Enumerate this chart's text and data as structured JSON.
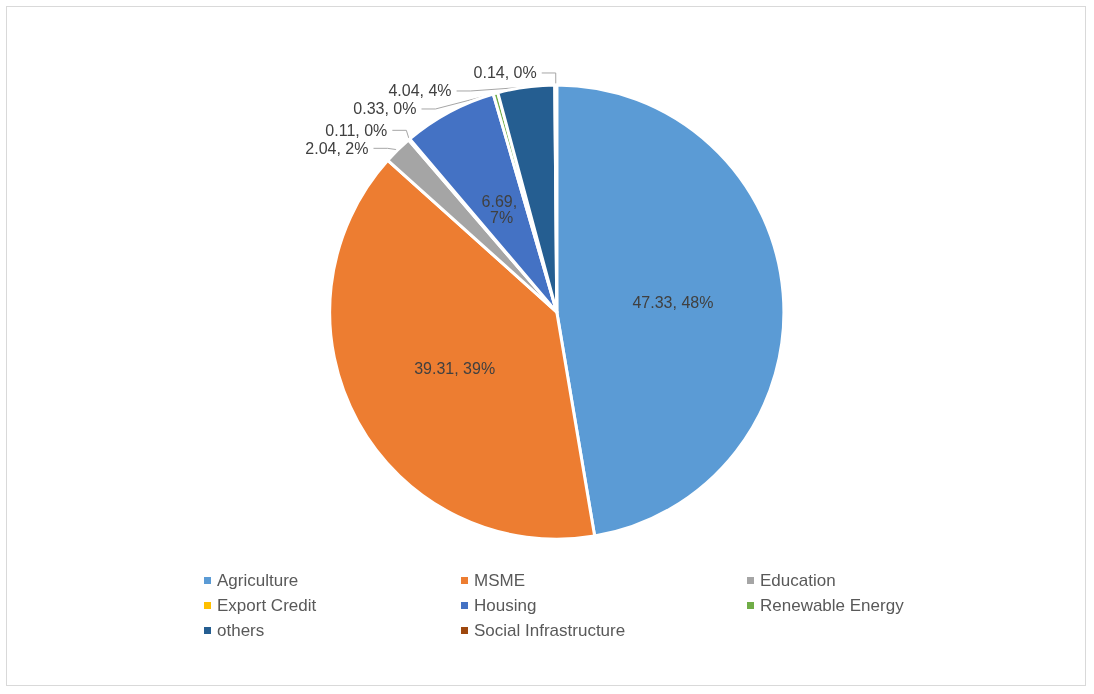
{
  "chart_data": {
    "type": "pie",
    "categories": [
      "Agriculture",
      "MSME",
      "Education",
      "Export Credit",
      "Housing",
      "Renewable Energy",
      "others",
      "Social Infrastructure"
    ],
    "values": [
      47.33,
      39.31,
      2.04,
      0.11,
      6.69,
      0.33,
      4.04,
      0.14
    ],
    "colors": [
      "#5b9bd5",
      "#ed7d31",
      "#a5a5a5",
      "#ffc000",
      "#4472c4",
      "#70ad47",
      "#255e91",
      "#9e480e"
    ],
    "value_labels": [
      "47.33, 48%",
      "39.31, 39%",
      "2.04, 2%",
      "0.11, 0%",
      "6.69, 7%",
      "0.33, 0%",
      "4.04, 4%",
      "0.14, 0%"
    ],
    "legend": "bottom"
  }
}
